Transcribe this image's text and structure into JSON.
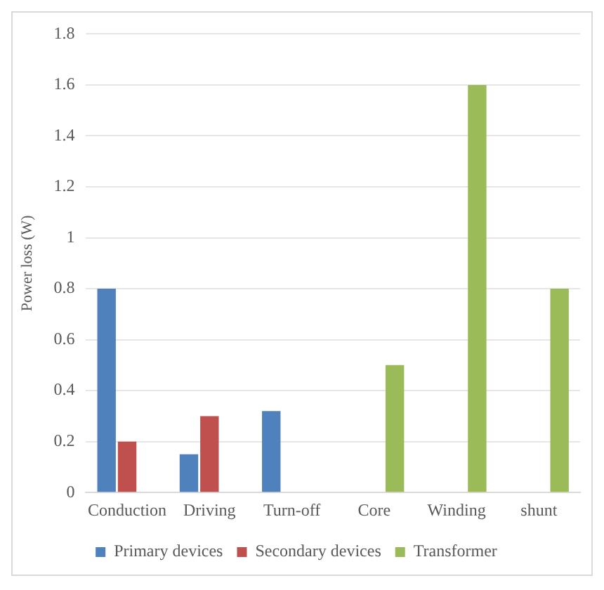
{
  "chart_data": {
    "type": "bar",
    "ylabel": "Power loss (W)",
    "categories": [
      "Conduction",
      "Driving",
      "Turn-off",
      "Core",
      "Winding",
      "shunt"
    ],
    "series": [
      {
        "name": "Primary devices",
        "color": "#4f81bd",
        "values": [
          0.8,
          0.15,
          0.32,
          null,
          null,
          null
        ]
      },
      {
        "name": "Secondary devices",
        "color": "#c0504d",
        "values": [
          0.2,
          0.3,
          null,
          null,
          null,
          null
        ]
      },
      {
        "name": "Transformer",
        "color": "#9bbb59",
        "values": [
          null,
          null,
          null,
          0.5,
          1.6,
          0.8
        ]
      }
    ],
    "ylim": [
      0,
      1.8
    ],
    "yticks": [
      0,
      0.2,
      0.4,
      0.6,
      0.8,
      1,
      1.2,
      1.4,
      1.6,
      1.8
    ],
    "grid": "y",
    "legend": "bottom"
  }
}
